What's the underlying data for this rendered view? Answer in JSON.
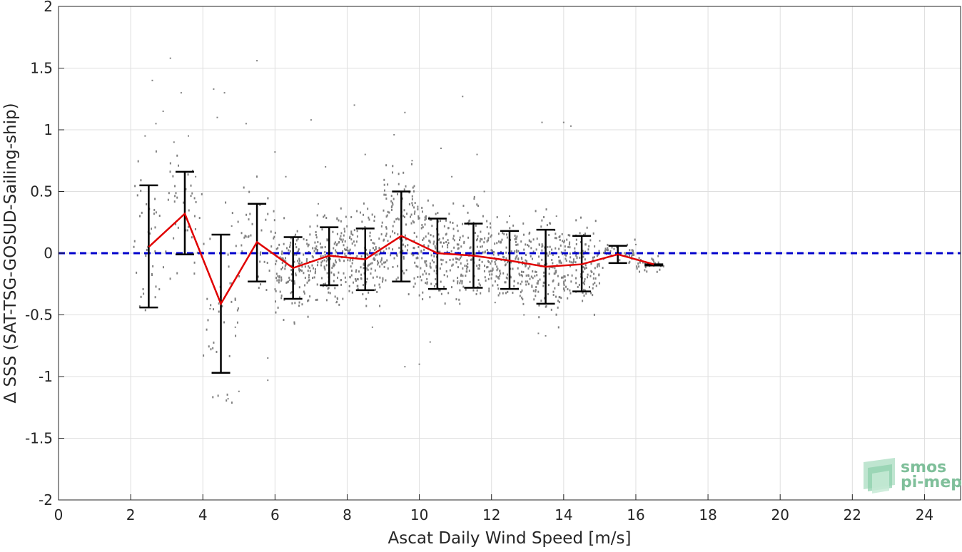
{
  "chart_data": {
    "type": "scatter",
    "title": "",
    "xlabel": "Ascat Daily Wind Speed [m/s]",
    "ylabel": "Δ SSS (SAT-TSG-GOSUD-Sailing-ship)",
    "xlim": [
      0,
      25
    ],
    "ylim": [
      -2,
      2
    ],
    "xticks": [
      0,
      2,
      4,
      6,
      8,
      10,
      12,
      14,
      16,
      18,
      20,
      22,
      24
    ],
    "yticks": [
      -2,
      -1.5,
      -1,
      -0.5,
      0,
      0.5,
      1,
      1.5,
      2
    ],
    "xtick_labels": [
      "0",
      "2",
      "4",
      "6",
      "8",
      "10",
      "12",
      "14",
      "16",
      "18",
      "20",
      "22",
      "24"
    ],
    "ytick_labels": [
      "-2",
      "-1.5",
      "-1",
      "-0.5",
      "0",
      "0.5",
      "1",
      "1.5",
      "2"
    ],
    "grid": true,
    "zero_line": {
      "y": 0,
      "color": "#0000cc",
      "style": "dashed"
    },
    "binned_mean": {
      "color": "#e00000",
      "x": [
        2.5,
        3.5,
        4.5,
        5.5,
        6.5,
        7.5,
        8.5,
        9.5,
        10.5,
        11.5,
        12.5,
        13.5,
        14.5,
        15.5,
        16.5
      ],
      "y": [
        0.05,
        0.32,
        -0.41,
        0.09,
        -0.12,
        -0.02,
        -0.05,
        0.14,
        0.0,
        -0.02,
        -0.06,
        -0.11,
        -0.09,
        -0.01,
        -0.09
      ]
    },
    "error_bars": {
      "color": "#000000",
      "x": [
        2.5,
        3.5,
        4.5,
        5.5,
        6.5,
        7.5,
        8.5,
        9.5,
        10.5,
        11.5,
        12.5,
        13.5,
        14.5,
        15.5,
        16.5
      ],
      "upper": [
        0.55,
        0.66,
        0.15,
        0.4,
        0.13,
        0.21,
        0.2,
        0.5,
        0.28,
        0.24,
        0.18,
        0.19,
        0.14,
        0.06,
        -0.09
      ],
      "lower": [
        -0.44,
        -0.01,
        -0.97,
        -0.23,
        -0.37,
        -0.26,
        -0.3,
        -0.23,
        -0.29,
        -0.28,
        -0.29,
        -0.41,
        -0.31,
        -0.08,
        -0.1
      ]
    },
    "scatter": {
      "color": "#808080",
      "description_points": [
        [
          2.4,
          0.95
        ],
        [
          2.6,
          1.4
        ],
        [
          2.7,
          1.05
        ],
        [
          2.9,
          1.15
        ],
        [
          3.1,
          1.58
        ],
        [
          3.2,
          0.9
        ],
        [
          3.4,
          1.3
        ],
        [
          3.6,
          0.95
        ],
        [
          3.8,
          0.62
        ],
        [
          4.2,
          -0.45
        ],
        [
          4.3,
          1.33
        ],
        [
          4.4,
          1.1
        ],
        [
          4.6,
          1.3
        ],
        [
          4.7,
          -1.18
        ],
        [
          4.8,
          0.22
        ],
        [
          4.9,
          -0.6
        ],
        [
          5.0,
          -1.12
        ],
        [
          5.2,
          1.05
        ],
        [
          5.5,
          1.56
        ],
        [
          5.8,
          -1.03
        ],
        [
          5.8,
          -0.85
        ],
        [
          6.0,
          0.82
        ],
        [
          6.3,
          0.62
        ],
        [
          6.5,
          -0.15
        ],
        [
          7.0,
          1.08
        ],
        [
          7.2,
          0.4
        ],
        [
          7.4,
          0.7
        ],
        [
          7.7,
          -0.4
        ],
        [
          8.2,
          1.2
        ],
        [
          8.5,
          0.8
        ],
        [
          8.7,
          -0.6
        ],
        [
          9.3,
          0.96
        ],
        [
          9.6,
          1.14
        ],
        [
          9.6,
          -0.92
        ],
        [
          9.8,
          0.75
        ],
        [
          10.0,
          -0.9
        ],
        [
          10.3,
          -0.72
        ],
        [
          10.6,
          0.85
        ],
        [
          10.9,
          0.62
        ],
        [
          11.2,
          1.27
        ],
        [
          11.6,
          0.8
        ],
        [
          11.8,
          0.5
        ],
        [
          12.1,
          -0.4
        ],
        [
          12.5,
          0.3
        ],
        [
          12.9,
          -0.5
        ],
        [
          13.3,
          -0.65
        ],
        [
          13.4,
          1.06
        ],
        [
          13.5,
          -0.67
        ],
        [
          13.8,
          0.3
        ],
        [
          14.0,
          1.06
        ],
        [
          14.2,
          1.03
        ],
        [
          14.6,
          -0.3
        ],
        [
          15.0,
          0.1
        ],
        [
          15.5,
          -0.05
        ],
        [
          16.0,
          0.07
        ],
        [
          16.5,
          -0.1
        ]
      ]
    }
  },
  "logo": {
    "line1": "smos",
    "line2": "pi-mep"
  }
}
